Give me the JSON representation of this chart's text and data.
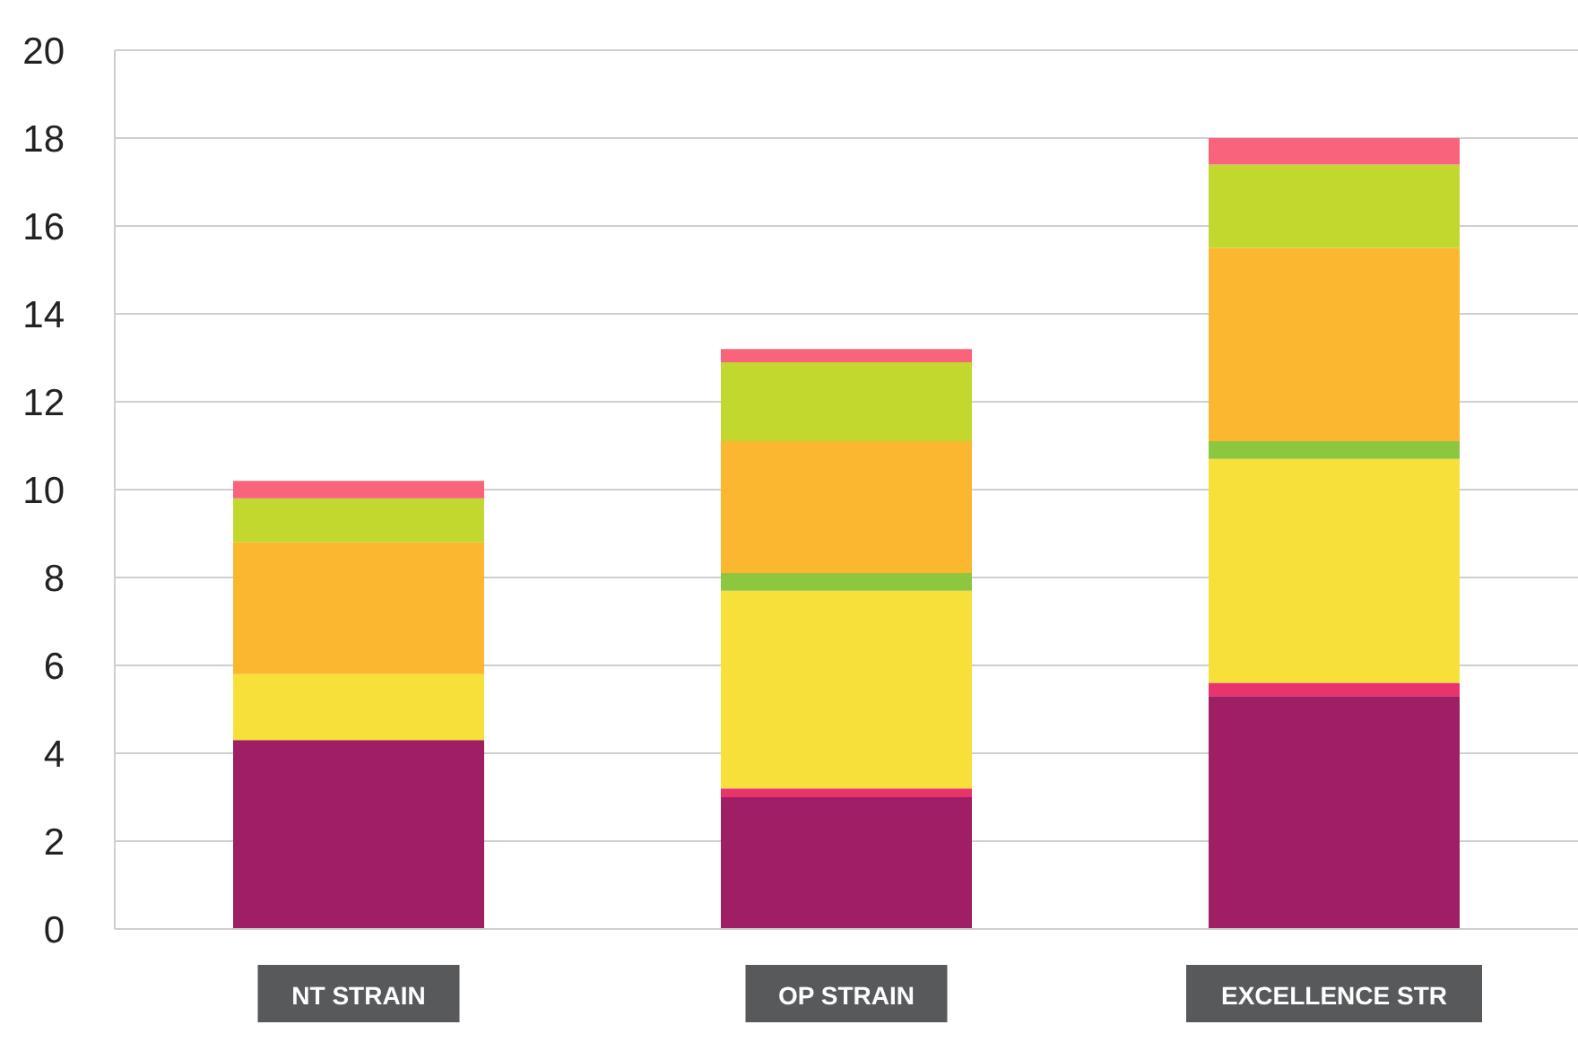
{
  "chart_data": {
    "type": "bar",
    "stacked": true,
    "categories": [
      "NT STRAIN",
      "OP STRAIN",
      "EXCELLENCE STR"
    ],
    "series": [
      {
        "color": "#9e1f63",
        "values": [
          4.3,
          3.0,
          5.3
        ]
      },
      {
        "color": "#e8336d",
        "values": [
          0,
          0.2,
          0.3
        ]
      },
      {
        "color": "#f7e03a",
        "values": [
          1.5,
          4.5,
          5.1
        ]
      },
      {
        "color": "#8dc63f",
        "values": [
          0,
          0.4,
          0.4
        ]
      },
      {
        "color": "#fbb72f",
        "values": [
          3.0,
          3.0,
          4.4
        ]
      },
      {
        "color": "#c2d82e",
        "values": [
          1.0,
          1.8,
          1.9
        ]
      },
      {
        "color": "#f9637c",
        "values": [
          0.4,
          0.3,
          0.6
        ]
      }
    ],
    "ylim": [
      0,
      20
    ],
    "yticks": [
      0,
      2,
      4,
      6,
      8,
      10,
      12,
      14,
      16,
      18,
      20
    ],
    "grid": "y",
    "legend": false
  }
}
